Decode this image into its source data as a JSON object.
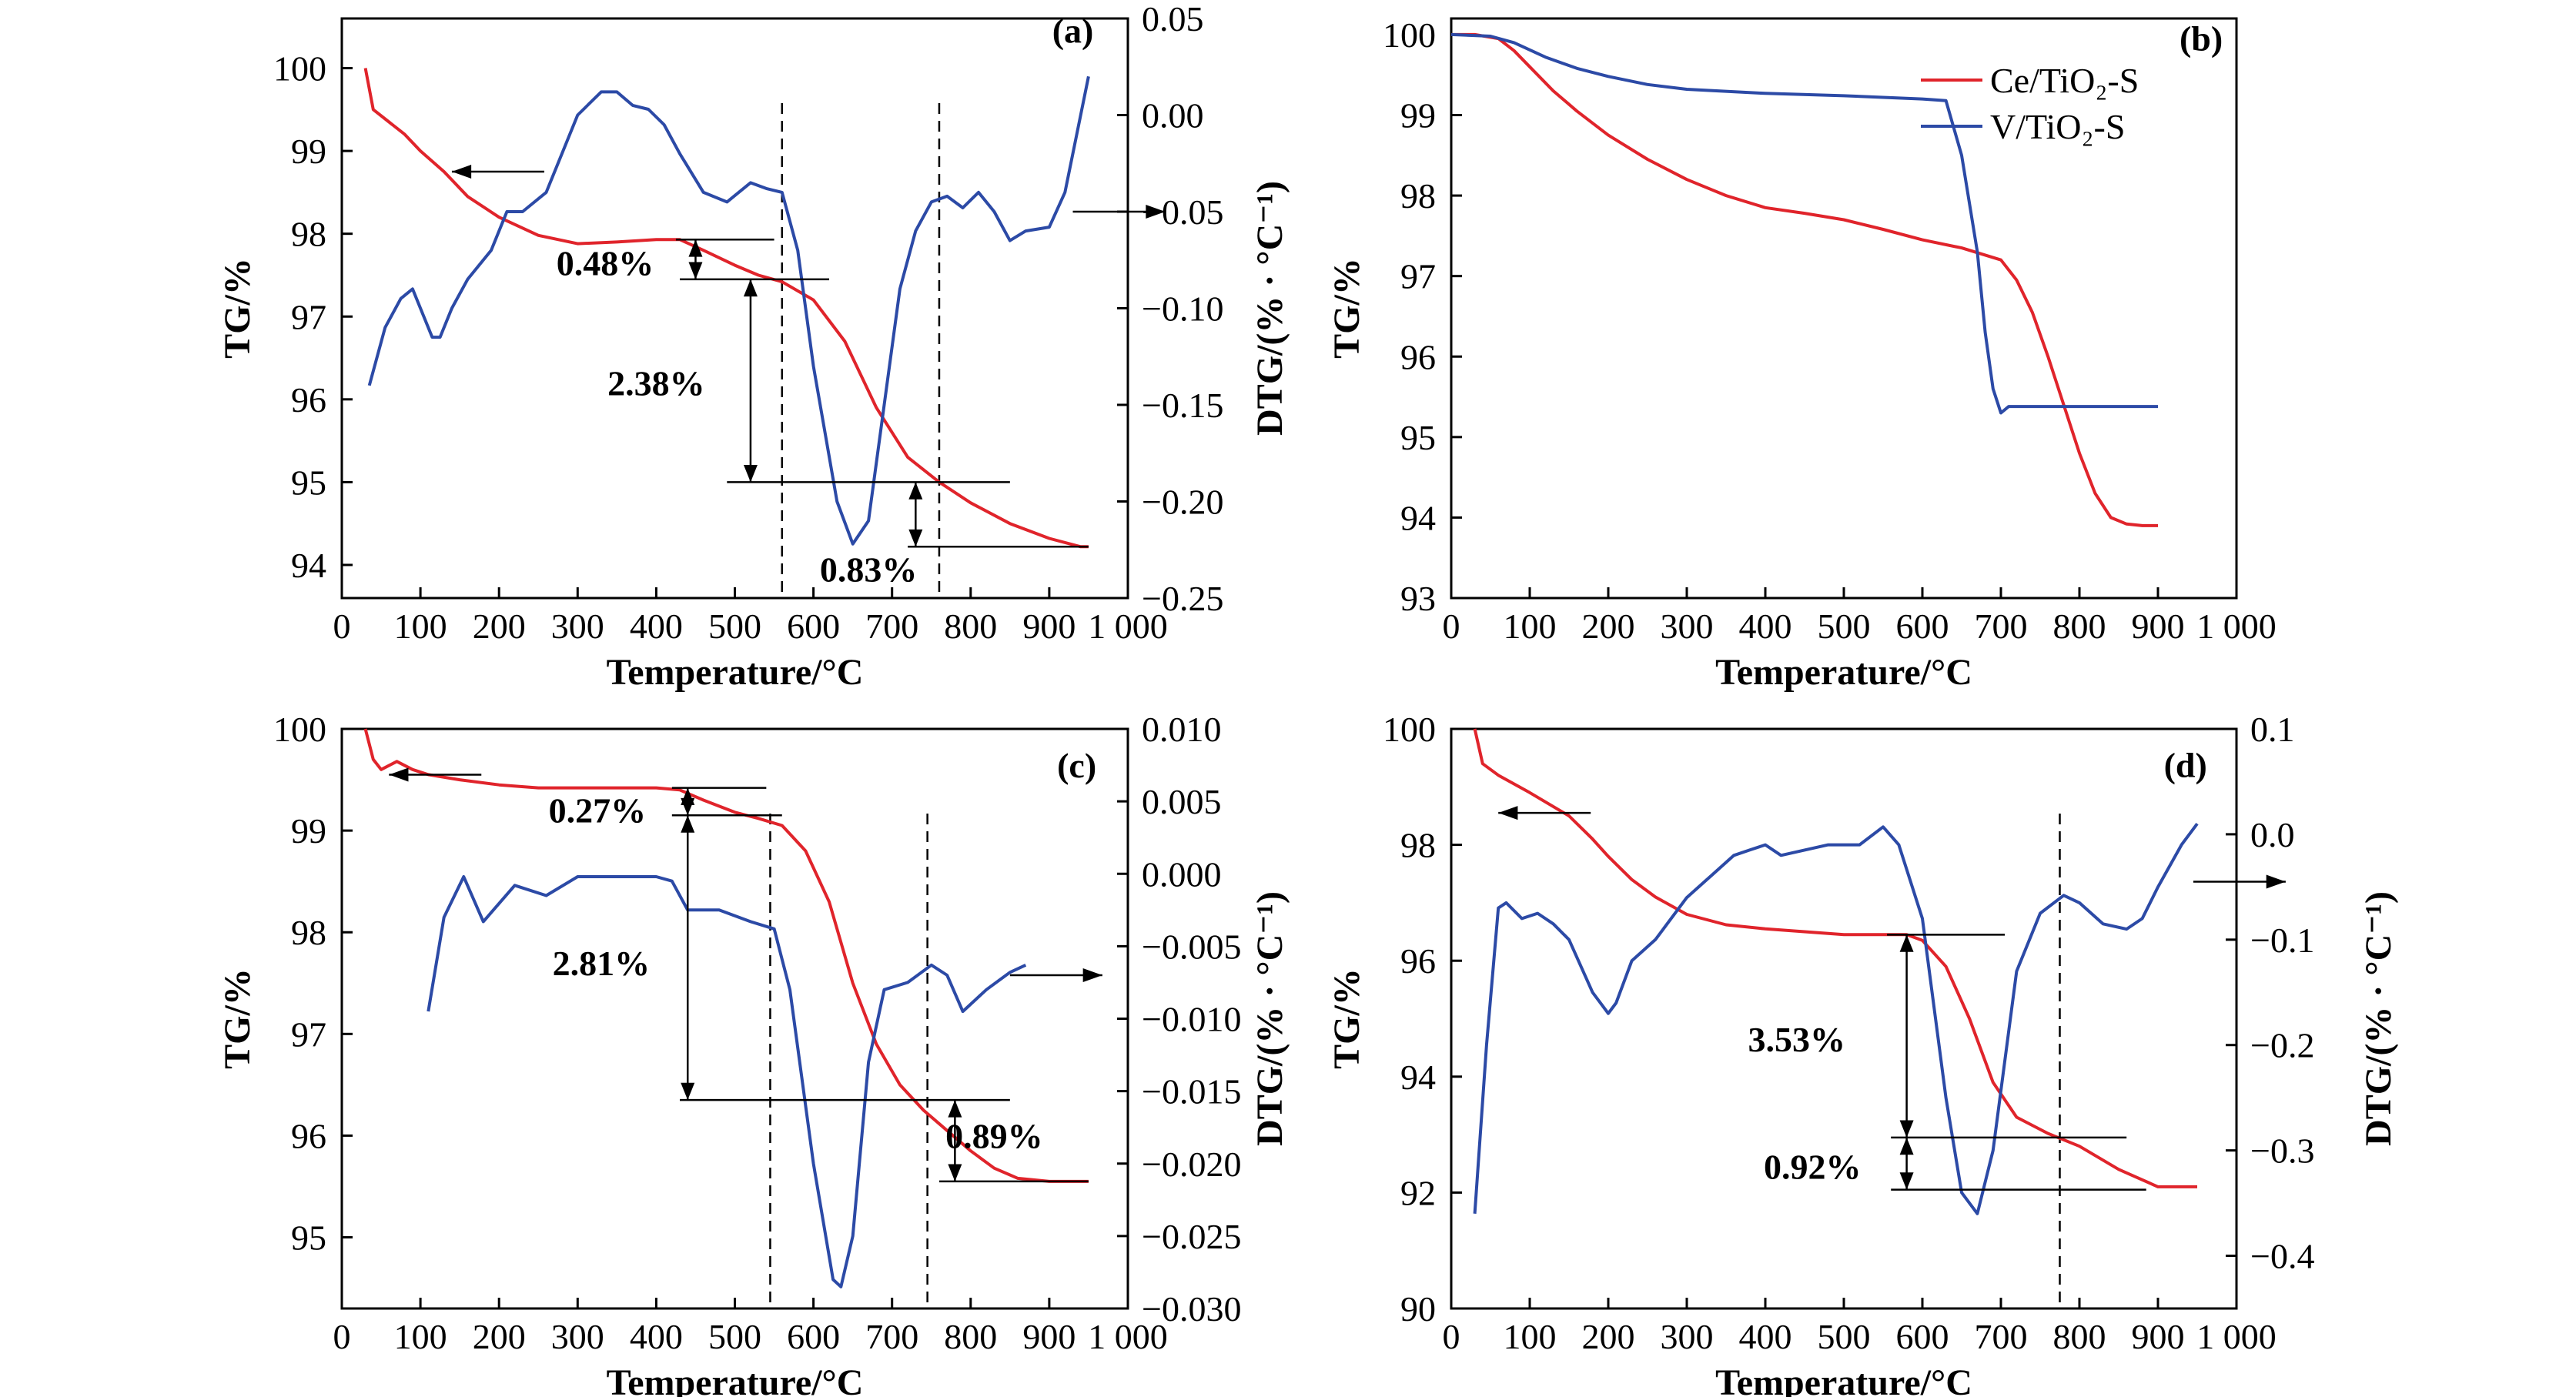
{
  "colors": {
    "tg": "#e0242b",
    "dtg": "#2c4aa6",
    "axis": "#000000"
  },
  "chart_data": [
    {
      "type": "line",
      "panel": "(a)",
      "xlabel": "Temperature/°C",
      "ylabel": "TG/%",
      "y2label": "DTG/(% · °C⁻¹)",
      "xlim": [
        0,
        1000
      ],
      "ylim": [
        93.6,
        100.6
      ],
      "y2lim": [
        -0.25,
        0.05
      ],
      "xticks": [
        0,
        100,
        200,
        300,
        400,
        500,
        600,
        700,
        800,
        900,
        1000
      ],
      "xtick_labels": [
        "0",
        "100",
        "200",
        "300",
        "400",
        "500",
        "600",
        "700",
        "800",
        "900",
        "1 000"
      ],
      "yticks": [
        94,
        95,
        96,
        97,
        98,
        99,
        100
      ],
      "y2ticks": [
        -0.25,
        -0.2,
        -0.15,
        -0.1,
        -0.05,
        0.0,
        0.05
      ],
      "y2tick_labels": [
        "−0.25",
        "−0.20",
        "−0.15",
        "−0.10",
        "−0.05",
        "0.00",
        "0.05"
      ],
      "series": [
        {
          "role": "TG",
          "axis": "left",
          "x": [
            30,
            40,
            60,
            80,
            100,
            130,
            160,
            200,
            250,
            300,
            350,
            400,
            430,
            460,
            500,
            530,
            560,
            600,
            640,
            680,
            720,
            760,
            800,
            850,
            900,
            940,
            950
          ],
          "y": [
            100,
            99.5,
            99.35,
            99.2,
            99.0,
            98.75,
            98.45,
            98.2,
            97.98,
            97.88,
            97.9,
            97.93,
            97.93,
            97.8,
            97.62,
            97.5,
            97.42,
            97.2,
            96.7,
            95.9,
            95.3,
            95.0,
            94.75,
            94.5,
            94.32,
            94.22,
            94.22
          ]
        },
        {
          "role": "DTG",
          "axis": "right",
          "x": [
            35,
            55,
            75,
            90,
            100,
            115,
            125,
            140,
            160,
            190,
            210,
            230,
            260,
            300,
            330,
            350,
            370,
            390,
            410,
            430,
            460,
            490,
            520,
            540,
            560,
            580,
            600,
            630,
            650,
            670,
            690,
            710,
            730,
            750,
            770,
            790,
            810,
            830,
            850,
            870,
            900,
            920,
            940,
            950
          ],
          "y": [
            -0.14,
            -0.11,
            -0.095,
            -0.09,
            -0.1,
            -0.115,
            -0.115,
            -0.1,
            -0.085,
            -0.07,
            -0.05,
            -0.05,
            -0.04,
            0.0,
            0.012,
            0.012,
            0.005,
            0.003,
            -0.005,
            -0.02,
            -0.04,
            -0.045,
            -0.035,
            -0.038,
            -0.04,
            -0.07,
            -0.13,
            -0.2,
            -0.222,
            -0.21,
            -0.15,
            -0.09,
            -0.06,
            -0.045,
            -0.042,
            -0.048,
            -0.04,
            -0.05,
            -0.065,
            -0.06,
            -0.058,
            -0.04,
            0.0,
            0.02
          ]
        }
      ],
      "annotations": [
        "0.48%",
        "2.38%",
        "0.83%"
      ]
    },
    {
      "type": "line",
      "panel": "(b)",
      "xlabel": "Temperature/°C",
      "ylabel": "TG/%",
      "xlim": [
        0,
        1000
      ],
      "ylim": [
        93,
        100.2
      ],
      "xticks": [
        0,
        100,
        200,
        300,
        400,
        500,
        600,
        700,
        800,
        900,
        1000
      ],
      "xtick_labels": [
        "0",
        "100",
        "200",
        "300",
        "400",
        "500",
        "600",
        "700",
        "800",
        "900",
        "1 000"
      ],
      "yticks": [
        93,
        94,
        95,
        96,
        97,
        98,
        99,
        100
      ],
      "legend_position": "top-right",
      "series": [
        {
          "name": "Ce/TiO₂-S",
          "role": "TG",
          "axis": "left",
          "x": [
            0,
            30,
            60,
            80,
            100,
            130,
            160,
            200,
            250,
            300,
            350,
            400,
            450,
            500,
            550,
            600,
            650,
            700,
            720,
            740,
            760,
            780,
            800,
            820,
            840,
            860,
            880,
            900
          ],
          "y": [
            100,
            100,
            99.95,
            99.8,
            99.6,
            99.3,
            99.05,
            98.75,
            98.45,
            98.2,
            98.0,
            97.85,
            97.78,
            97.7,
            97.58,
            97.45,
            97.35,
            97.2,
            96.95,
            96.55,
            96.0,
            95.4,
            94.8,
            94.3,
            94.0,
            93.92,
            93.9,
            93.9
          ]
        },
        {
          "name": "V/TiO₂-S",
          "role": "TG",
          "axis": "left",
          "x": [
            0,
            50,
            80,
            120,
            160,
            200,
            250,
            300,
            400,
            500,
            600,
            630,
            650,
            670,
            680,
            690,
            700,
            710,
            720,
            750,
            800,
            850,
            900
          ],
          "y": [
            100,
            99.98,
            99.9,
            99.72,
            99.58,
            99.48,
            99.38,
            99.32,
            99.27,
            99.24,
            99.2,
            99.18,
            98.5,
            97.3,
            96.3,
            95.6,
            95.3,
            95.38,
            95.38,
            95.38,
            95.38,
            95.38,
            95.38
          ]
        }
      ]
    },
    {
      "type": "line",
      "panel": "(c)",
      "xlabel": "Temperature/°C",
      "ylabel": "TG/%",
      "y2label": "DTG/(% · °C⁻¹)",
      "xlim": [
        0,
        1000
      ],
      "ylim": [
        94.3,
        100
      ],
      "y2lim": [
        -0.03,
        0.01
      ],
      "xticks": [
        0,
        100,
        200,
        300,
        400,
        500,
        600,
        700,
        800,
        900,
        1000
      ],
      "xtick_labels": [
        "0",
        "100",
        "200",
        "300",
        "400",
        "500",
        "600",
        "700",
        "800",
        "900",
        "1 000"
      ],
      "yticks": [
        95,
        96,
        97,
        98,
        99,
        100
      ],
      "y2ticks": [
        -0.03,
        -0.025,
        -0.02,
        -0.015,
        -0.01,
        -0.005,
        0.0,
        0.005,
        0.01
      ],
      "y2tick_labels": [
        "−0.030",
        "−0.025",
        "−0.020",
        "−0.015",
        "−0.010",
        "−0.005",
        "0.000",
        "0.005",
        "0.010"
      ],
      "series": [
        {
          "role": "TG",
          "axis": "left",
          "x": [
            30,
            40,
            50,
            70,
            90,
            110,
            150,
            200,
            250,
            300,
            350,
            400,
            430,
            460,
            500,
            530,
            560,
            590,
            620,
            650,
            680,
            710,
            740,
            770,
            800,
            830,
            860,
            900,
            950
          ],
          "y": [
            100,
            99.7,
            99.6,
            99.68,
            99.6,
            99.55,
            99.5,
            99.45,
            99.42,
            99.42,
            99.42,
            99.42,
            99.4,
            99.3,
            99.18,
            99.12,
            99.05,
            98.8,
            98.3,
            97.5,
            96.9,
            96.5,
            96.25,
            96.05,
            95.85,
            95.68,
            95.58,
            95.55,
            95.55
          ]
        },
        {
          "role": "DTG",
          "axis": "right",
          "x": [
            110,
            130,
            155,
            180,
            220,
            260,
            300,
            400,
            420,
            440,
            480,
            520,
            550,
            570,
            600,
            625,
            635,
            650,
            670,
            690,
            720,
            750,
            770,
            790,
            820,
            850,
            870
          ],
          "y": [
            -0.0095,
            -0.003,
            -0.0002,
            -0.0033,
            -0.0008,
            -0.0015,
            -0.0002,
            -0.0002,
            -0.0005,
            -0.0025,
            -0.0025,
            -0.0033,
            -0.0038,
            -0.008,
            -0.02,
            -0.028,
            -0.0285,
            -0.025,
            -0.013,
            -0.008,
            -0.0075,
            -0.0063,
            -0.007,
            -0.0095,
            -0.008,
            -0.0068,
            -0.0063
          ]
        }
      ],
      "annotations": [
        "0.27%",
        "2.81%",
        "0.89%"
      ]
    },
    {
      "type": "line",
      "panel": "(d)",
      "xlabel": "Temperature/°C",
      "ylabel": "TG/%",
      "y2label": "DTG/(% · °C⁻¹)",
      "xlim": [
        0,
        1000
      ],
      "ylim": [
        90,
        100
      ],
      "y2lim": [
        -0.45,
        0.1
      ],
      "xticks": [
        0,
        100,
        200,
        300,
        400,
        500,
        600,
        700,
        800,
        900,
        1000
      ],
      "xtick_labels": [
        "0",
        "100",
        "200",
        "300",
        "400",
        "500",
        "600",
        "700",
        "800",
        "900",
        "1 000"
      ],
      "yticks": [
        90,
        92,
        94,
        96,
        98,
        100
      ],
      "y2ticks": [
        -0.4,
        -0.3,
        -0.2,
        -0.1,
        0.0,
        0.1
      ],
      "y2tick_labels": [
        "−0.4",
        "−0.3",
        "−0.2",
        "−0.1",
        "0.0",
        "0.1"
      ],
      "series": [
        {
          "role": "TG",
          "axis": "left",
          "x": [
            30,
            40,
            60,
            100,
            150,
            180,
            200,
            230,
            260,
            300,
            350,
            400,
            450,
            500,
            550,
            580,
            600,
            630,
            660,
            690,
            720,
            760,
            800,
            850,
            900,
            950
          ],
          "y": [
            100,
            99.4,
            99.2,
            98.9,
            98.5,
            98.1,
            97.8,
            97.4,
            97.1,
            96.8,
            96.62,
            96.55,
            96.5,
            96.45,
            96.45,
            96.45,
            96.35,
            95.9,
            95.0,
            93.9,
            93.3,
            93.02,
            92.8,
            92.4,
            92.1,
            92.1
          ]
        },
        {
          "role": "DTG",
          "axis": "right",
          "x": [
            30,
            45,
            60,
            70,
            90,
            110,
            130,
            150,
            180,
            200,
            210,
            230,
            260,
            300,
            330,
            360,
            380,
            400,
            420,
            450,
            480,
            520,
            550,
            570,
            600,
            630,
            650,
            670,
            690,
            720,
            750,
            780,
            800,
            830,
            860,
            880,
            900,
            930,
            950
          ],
          "y": [
            -0.36,
            -0.2,
            -0.07,
            -0.065,
            -0.08,
            -0.075,
            -0.085,
            -0.1,
            -0.15,
            -0.17,
            -0.16,
            -0.12,
            -0.1,
            -0.06,
            -0.04,
            -0.02,
            -0.015,
            -0.01,
            -0.02,
            -0.015,
            -0.01,
            -0.01,
            0.007,
            -0.01,
            -0.08,
            -0.25,
            -0.34,
            -0.36,
            -0.3,
            -0.13,
            -0.075,
            -0.058,
            -0.065,
            -0.085,
            -0.09,
            -0.08,
            -0.05,
            -0.01,
            0.01
          ]
        }
      ],
      "annotations": [
        "3.53%",
        "0.92%"
      ]
    }
  ]
}
